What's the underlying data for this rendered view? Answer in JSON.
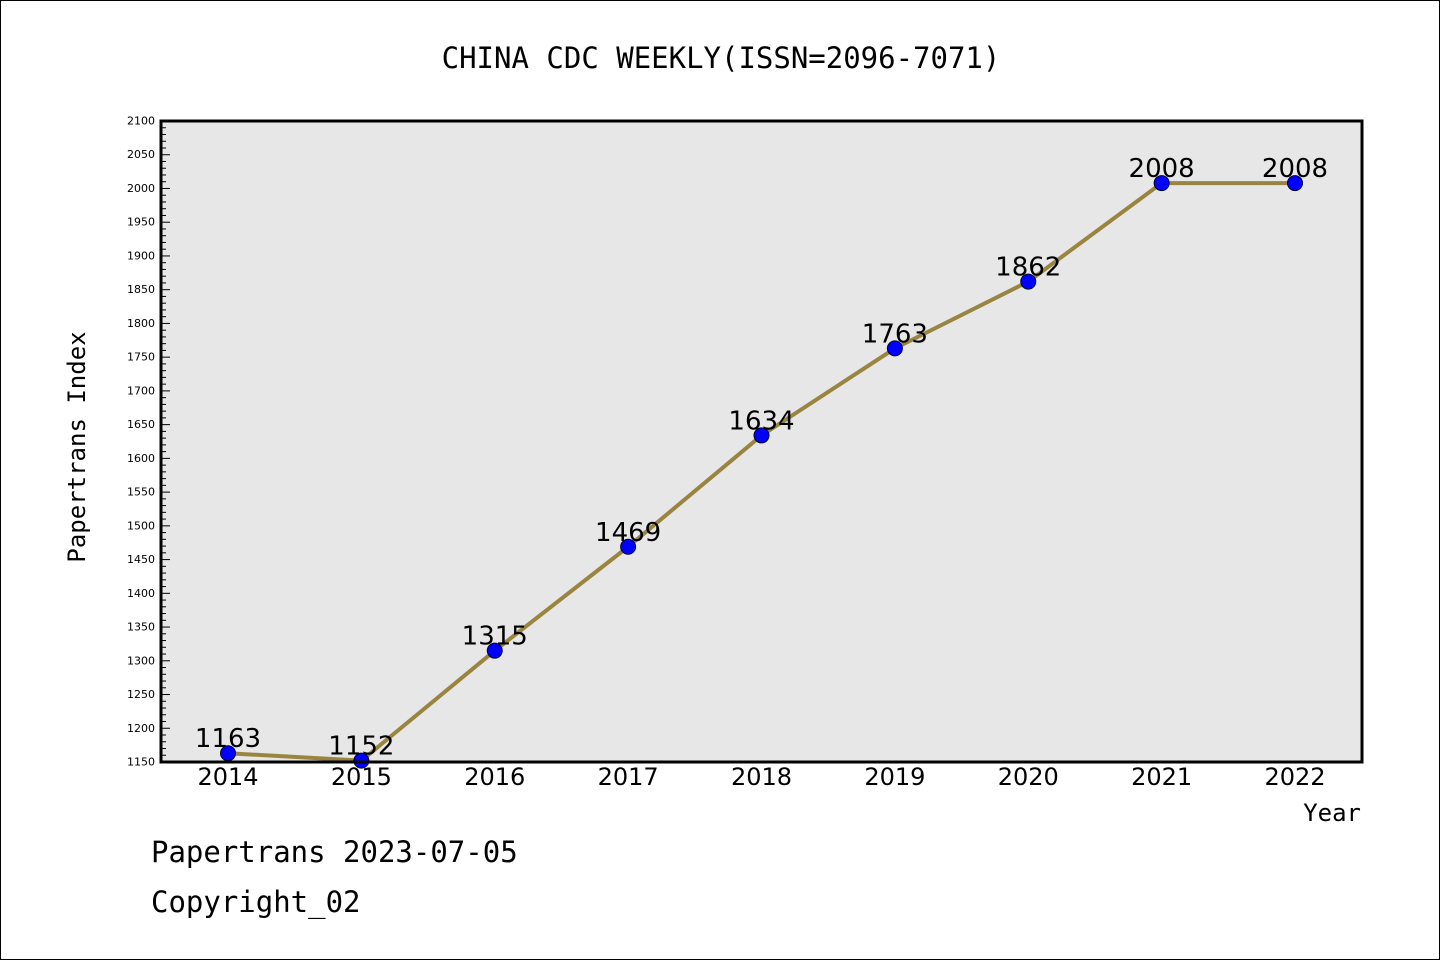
{
  "chart_data": {
    "type": "line",
    "title": "CHINA CDC WEEKLY(ISSN=2096-7071)",
    "xlabel": "Year",
    "ylabel": "Papertrans Index",
    "categories": [
      "2014",
      "2015",
      "2016",
      "2017",
      "2018",
      "2019",
      "2020",
      "2021",
      "2022"
    ],
    "values": [
      1163,
      1152,
      1315,
      1469,
      1634,
      1763,
      1862,
      2008,
      2008
    ],
    "data_labels": [
      "1163",
      "1152",
      "1315",
      "1469",
      "1634",
      "1763",
      "1862",
      "2008",
      "2008"
    ],
    "ylim": [
      1150,
      2100
    ],
    "yticks": [
      "1150",
      "1200",
      "1250",
      "1300",
      "1350",
      "1400",
      "1450",
      "1500",
      "1550",
      "1600",
      "1650",
      "1700",
      "1750",
      "1800",
      "1850",
      "1900",
      "1950",
      "2000",
      "2050",
      "2100"
    ],
    "grid": false,
    "legend": "none",
    "colors": {
      "line": "#9a8540",
      "marker": "#0000ff",
      "plot_background": "#e7e7e7",
      "frame": "#000000"
    }
  },
  "footer": {
    "line1": "Papertrans 2023-07-05",
    "line2": "Copyright_02"
  }
}
